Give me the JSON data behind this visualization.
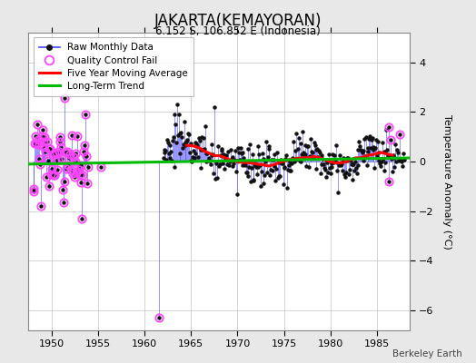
{
  "title": "JAKARTA(KEMAYORAN)",
  "subtitle": "6.152 S, 106.852 E (Indonesia)",
  "ylabel": "Temperature Anomaly (°C)",
  "attribution": "Berkeley Earth",
  "background_color": "#e8e8e8",
  "plot_background": "#ffffff",
  "xlim": [
    1947.5,
    1988.5
  ],
  "ylim": [
    -6.8,
    5.2
  ],
  "yticks": [
    -6,
    -4,
    -2,
    0,
    2,
    4
  ],
  "xticks": [
    1950,
    1955,
    1960,
    1965,
    1970,
    1975,
    1980,
    1985
  ],
  "grid_color": "#cccccc",
  "line_color": "#4444ff",
  "marker_color": "#111111",
  "qc_color": "#ff44ff",
  "moving_avg_color": "#ff0000",
  "trend_color": "#00bb00",
  "legend_loc": "upper left"
}
